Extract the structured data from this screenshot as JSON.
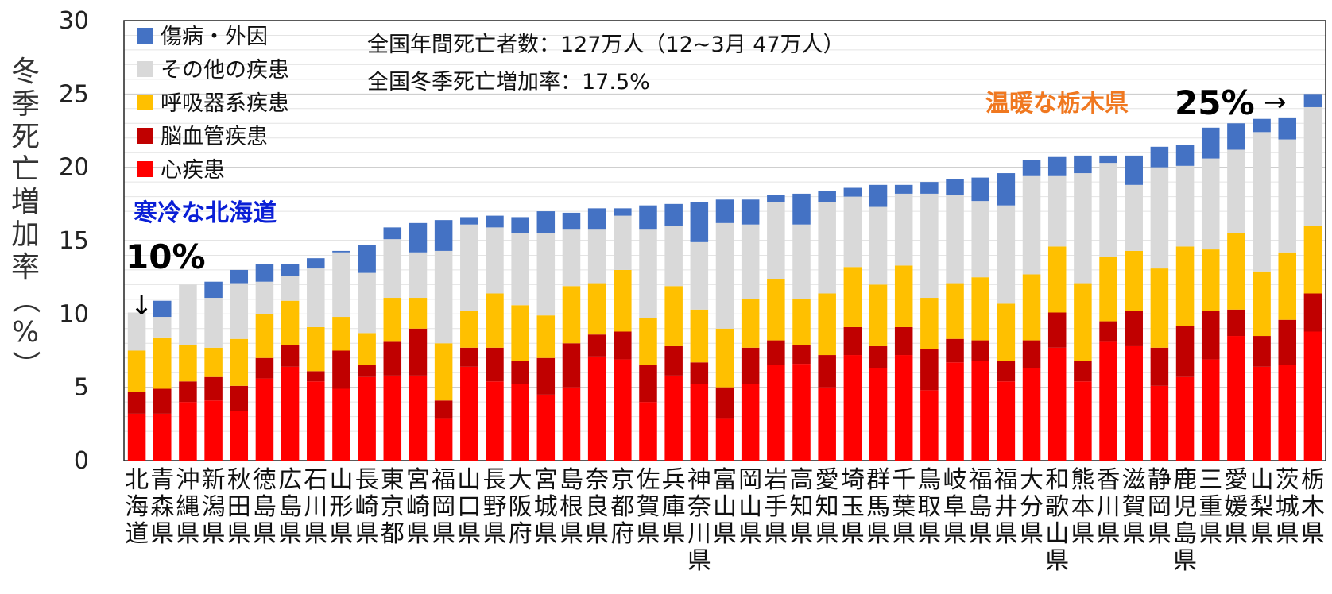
{
  "chart_data": {
    "type": "bar",
    "stacked": true,
    "ylabel": "冬季死亡増加率（%）",
    "ylim": [
      0,
      30
    ],
    "yticks": [
      0,
      5,
      10,
      15,
      20,
      25,
      30
    ],
    "grid": true,
    "legend_position": "top-left",
    "annotations": [
      "全国年間死亡者数：127万人（12~3月 47万人）",
      "全国冬季死亡増加率：17.5%"
    ],
    "callouts": {
      "cold_label": "寒冷な北海道",
      "cold_value": "10%",
      "warm_label": "温暖な栃木県",
      "warm_value": "25%"
    },
    "categories": [
      "北海道",
      "青森県",
      "沖縄県",
      "新潟県",
      "秋田県",
      "徳島県",
      "広島県",
      "石川県",
      "山形県",
      "長崎県",
      "東京都",
      "宮崎県",
      "福岡県",
      "山口県",
      "長野県",
      "大阪府",
      "宮城県",
      "島根県",
      "奈良県",
      "京都府",
      "佐賀県",
      "兵庫県",
      "神奈川県",
      "富山県",
      "岡山県",
      "岩手県",
      "高知県",
      "愛知県",
      "埼玉県",
      "群馬県",
      "千葉県",
      "鳥取県",
      "岐阜県",
      "福島県",
      "福井県",
      "大分県",
      "和歌山県",
      "熊本県",
      "香川県",
      "滋賀県",
      "静岡県",
      "鹿児島県",
      "三重県",
      "愛媛県",
      "山梨県",
      "茨城県",
      "栃木県"
    ],
    "series": [
      {
        "name": "心疾患",
        "color": "#ff0000",
        "values": [
          3.2,
          3.2,
          4.0,
          4.1,
          3.4,
          5.6,
          6.4,
          5.4,
          4.9,
          5.7,
          5.8,
          5.8,
          2.9,
          6.4,
          5.4,
          5.2,
          4.5,
          5.0,
          7.1,
          6.9,
          4.0,
          5.8,
          5.2,
          2.9,
          5.2,
          6.5,
          6.6,
          5.0,
          7.2,
          6.3,
          7.2,
          4.8,
          6.7,
          6.8,
          5.4,
          6.3,
          7.7,
          5.4,
          8.1,
          7.8,
          5.1,
          5.7,
          6.9,
          8.5,
          6.4,
          6.5,
          8.8
        ]
      },
      {
        "name": "脳血管疾患",
        "color": "#c00000",
        "values": [
          1.5,
          1.7,
          1.4,
          1.6,
          1.7,
          1.4,
          1.5,
          0.7,
          2.6,
          0.8,
          2.3,
          3.2,
          1.2,
          1.3,
          2.3,
          1.6,
          2.5,
          3.0,
          1.5,
          1.9,
          2.5,
          2.0,
          1.5,
          2.1,
          2.5,
          1.7,
          1.3,
          2.2,
          1.9,
          1.5,
          1.9,
          2.8,
          1.6,
          1.4,
          1.4,
          1.9,
          2.4,
          1.4,
          1.4,
          2.4,
          2.6,
          3.5,
          3.3,
          1.8,
          2.1,
          3.1,
          2.6
        ]
      },
      {
        "name": "呼吸器系疾患",
        "color": "#ffc000",
        "values": [
          2.8,
          3.5,
          2.5,
          2.0,
          3.2,
          3.0,
          3.0,
          3.0,
          2.3,
          2.2,
          3.0,
          2.1,
          3.9,
          2.5,
          3.7,
          3.8,
          2.9,
          3.9,
          3.5,
          4.2,
          3.2,
          4.1,
          3.6,
          4.0,
          3.3,
          4.2,
          3.1,
          4.2,
          4.1,
          4.2,
          4.2,
          3.5,
          3.8,
          4.3,
          3.9,
          4.5,
          4.5,
          5.3,
          4.4,
          4.1,
          5.4,
          5.4,
          4.2,
          5.2,
          4.4,
          4.6,
          4.6
        ]
      },
      {
        "name": "その他の疾患",
        "color": "#d9d9d9",
        "values": [
          2.6,
          1.4,
          4.1,
          3.4,
          3.8,
          2.2,
          1.7,
          4.0,
          4.4,
          4.1,
          4.0,
          3.1,
          6.3,
          5.9,
          4.5,
          4.9,
          5.6,
          3.9,
          3.7,
          3.7,
          6.1,
          4.1,
          4.6,
          7.2,
          5.1,
          5.2,
          5.1,
          6.2,
          4.8,
          5.3,
          4.9,
          7.1,
          6.0,
          5.2,
          6.7,
          6.7,
          4.8,
          7.5,
          6.4,
          4.5,
          6.9,
          5.5,
          6.2,
          5.7,
          9.5,
          7.7,
          8.1
        ]
      },
      {
        "name": "傷病・外因",
        "color": "#4472c4",
        "values": [
          0.0,
          1.1,
          0.0,
          1.1,
          0.9,
          1.2,
          0.8,
          0.7,
          0.1,
          1.9,
          0.8,
          2.0,
          2.1,
          0.5,
          0.8,
          1.1,
          1.5,
          1.1,
          1.4,
          0.5,
          1.6,
          1.5,
          2.7,
          1.6,
          1.7,
          0.5,
          2.1,
          0.8,
          0.6,
          1.5,
          0.6,
          0.8,
          1.1,
          1.6,
          2.2,
          1.1,
          1.3,
          1.2,
          0.5,
          2.0,
          1.4,
          1.4,
          2.1,
          1.8,
          0.9,
          1.5,
          0.9
        ]
      }
    ]
  }
}
